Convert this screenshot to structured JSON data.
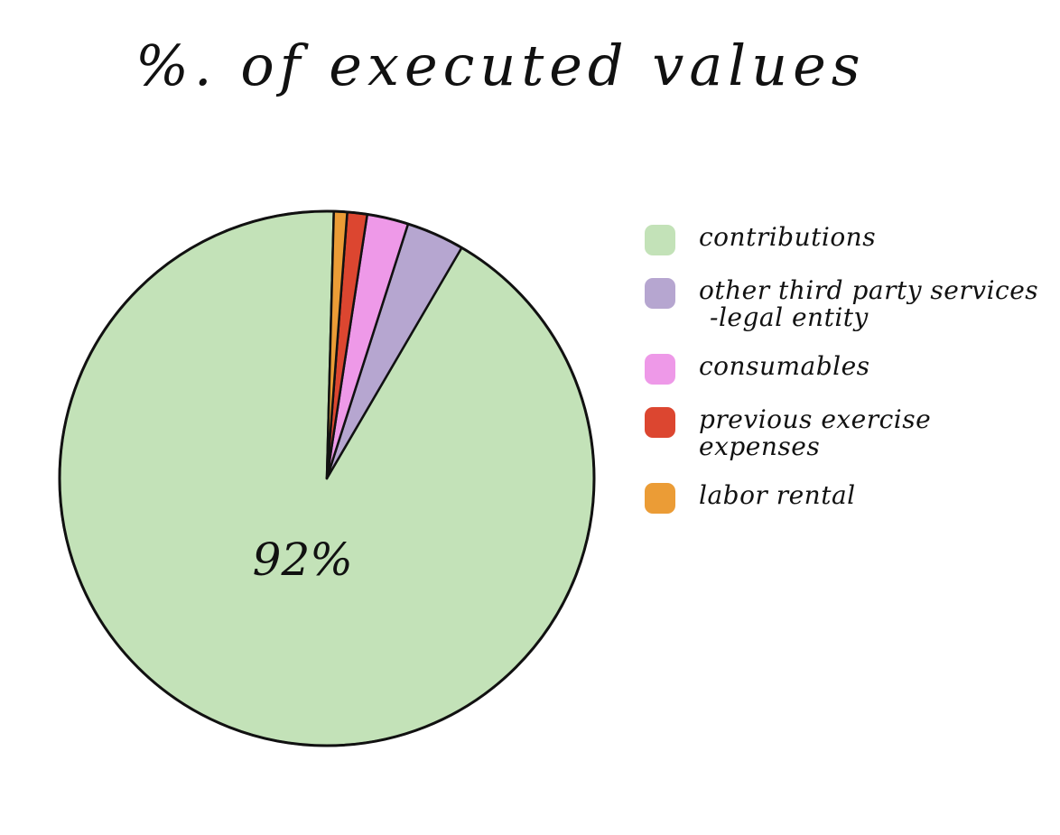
{
  "chart_data": {
    "type": "pie",
    "title": "%. of executed values",
    "start_angle_deg": 1.5,
    "slices": [
      {
        "label": "contributions",
        "value": 92,
        "value_label": "92%",
        "color": "#c3e2b8"
      },
      {
        "label": "other third party services -legal entity",
        "value": 3.5,
        "value_label": "",
        "color": "#b6a6d0"
      },
      {
        "label": "consumables",
        "value": 2.5,
        "value_label": "",
        "color": "#ee99e8"
      },
      {
        "label": "previous exercise expenses",
        "value": 1.2,
        "value_label": "",
        "color": "#dc4630"
      },
      {
        "label": "labor rental",
        "value": 0.8,
        "value_label": "",
        "color": "#eb9c36"
      }
    ],
    "legend": {
      "position": "right",
      "items": [
        {
          "lines": [
            "contributions"
          ],
          "color": "#c3e2b8"
        },
        {
          "lines": [
            "other third party services",
            "-legal entity"
          ],
          "color": "#b6a6d0"
        },
        {
          "lines": [
            "consumables"
          ],
          "color": "#ee99e8"
        },
        {
          "lines": [
            "previous exercise expenses"
          ],
          "color": "#dc4630"
        },
        {
          "lines": [
            "labor rental"
          ],
          "color": "#eb9c36"
        }
      ]
    }
  }
}
